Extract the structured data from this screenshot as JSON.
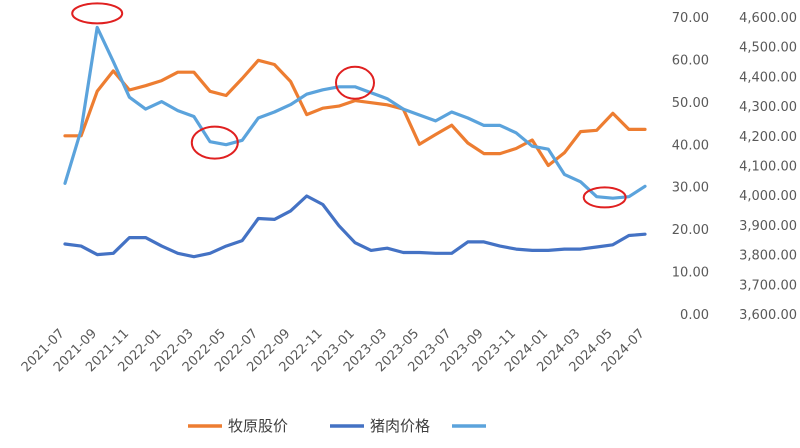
{
  "chart_data": {
    "type": "line",
    "x": [
      "2021-07",
      "2021-08",
      "2021-09",
      "2021-10",
      "2021-11",
      "2021-12",
      "2022-01",
      "2022-02",
      "2022-03",
      "2022-04",
      "2022-05",
      "2022-06",
      "2022-07",
      "2022-08",
      "2022-09",
      "2022-10",
      "2022-11",
      "2022-12",
      "2023-01",
      "2023-02",
      "2023-03",
      "2023-04",
      "2023-05",
      "2023-06",
      "2023-07",
      "2023-08",
      "2023-09",
      "2023-10",
      "2023-11",
      "2023-12",
      "2024-01",
      "2024-02",
      "2024-03",
      "2024-04",
      "2024-05",
      "2024-06",
      "2024-07"
    ],
    "xtick_labels": [
      "2021-07",
      "2021-09",
      "2021-11",
      "2022-01",
      "2022-03",
      "2022-05",
      "2022-07",
      "2022-09",
      "2022-11",
      "2023-01",
      "2023-03",
      "2023-05",
      "2023-07",
      "2023-09",
      "2023-11",
      "2024-01",
      "2024-03",
      "2024-05",
      "2024-07"
    ],
    "y_left": {
      "ylim": [
        0,
        70
      ],
      "ticks": [
        "0.00",
        "10.00",
        "20.00",
        "30.00",
        "40.00",
        "50.00",
        "60.00",
        "70.00"
      ]
    },
    "y_right": {
      "ylim": [
        3600,
        4600
      ],
      "ticks": [
        "3,600.00",
        "3,700.00",
        "3,800.00",
        "3,900.00",
        "4,000.00",
        "4,100.00",
        "4,200.00",
        "4,300.00",
        "4,400.00",
        "4,500.00",
        "4,600.00"
      ]
    },
    "series": [
      {
        "name": "牧原股价",
        "axis": "left",
        "color": "#ED7D31",
        "values": [
          42.0,
          42.0,
          52.5,
          57.3,
          52.8,
          53.8,
          55.0,
          57.0,
          57.0,
          52.5,
          51.5,
          55.5,
          59.8,
          58.8,
          54.8,
          47.0,
          48.5,
          49.0,
          50.3,
          49.8,
          49.3,
          48.3,
          40.0,
          42.3,
          44.5,
          40.3,
          37.8,
          37.8,
          39.0,
          41.0,
          35.0,
          38.0,
          43.0,
          43.3,
          47.3,
          43.5,
          43.5
        ]
      },
      {
        "name": "猪肉价格",
        "axis": "left",
        "color": "#4472C4",
        "values": [
          16.5,
          16.0,
          14.0,
          14.3,
          18.0,
          18.0,
          16.0,
          14.3,
          13.5,
          14.3,
          16.0,
          17.3,
          22.5,
          22.3,
          24.3,
          27.8,
          25.8,
          20.8,
          16.8,
          15.0,
          15.5,
          14.5,
          14.5,
          14.3,
          14.3,
          17.0,
          17.0,
          16.0,
          15.3,
          15.0,
          15.0,
          15.3,
          15.3,
          15.8,
          16.3,
          18.5,
          18.8
        ]
      },
      {
        "name": "",
        "axis": "right",
        "color": "#5BA3DC",
        "values": [
          4040,
          4220,
          4565,
          4450,
          4330,
          4290,
          4315,
          4285,
          4265,
          4180,
          4170,
          4185,
          4260,
          4280,
          4305,
          4340,
          4355,
          4365,
          4365,
          4345,
          4325,
          4290,
          4270,
          4250,
          4280,
          4260,
          4235,
          4235,
          4210,
          4165,
          4155,
          4070,
          4045,
          3995,
          3990,
          3995,
          4030
        ]
      }
    ],
    "annotations": [
      {
        "type": "ellipse",
        "color": "#E02020",
        "near": "2021-09 peak"
      },
      {
        "type": "ellipse",
        "color": "#E02020",
        "near": "2022-04 dip"
      },
      {
        "type": "ellipse",
        "color": "#E02020",
        "near": "2023-01 peak"
      },
      {
        "type": "ellipse",
        "color": "#E02020",
        "near": "2024-05 trough"
      }
    ],
    "grid": false,
    "legend": "bottom-center"
  }
}
